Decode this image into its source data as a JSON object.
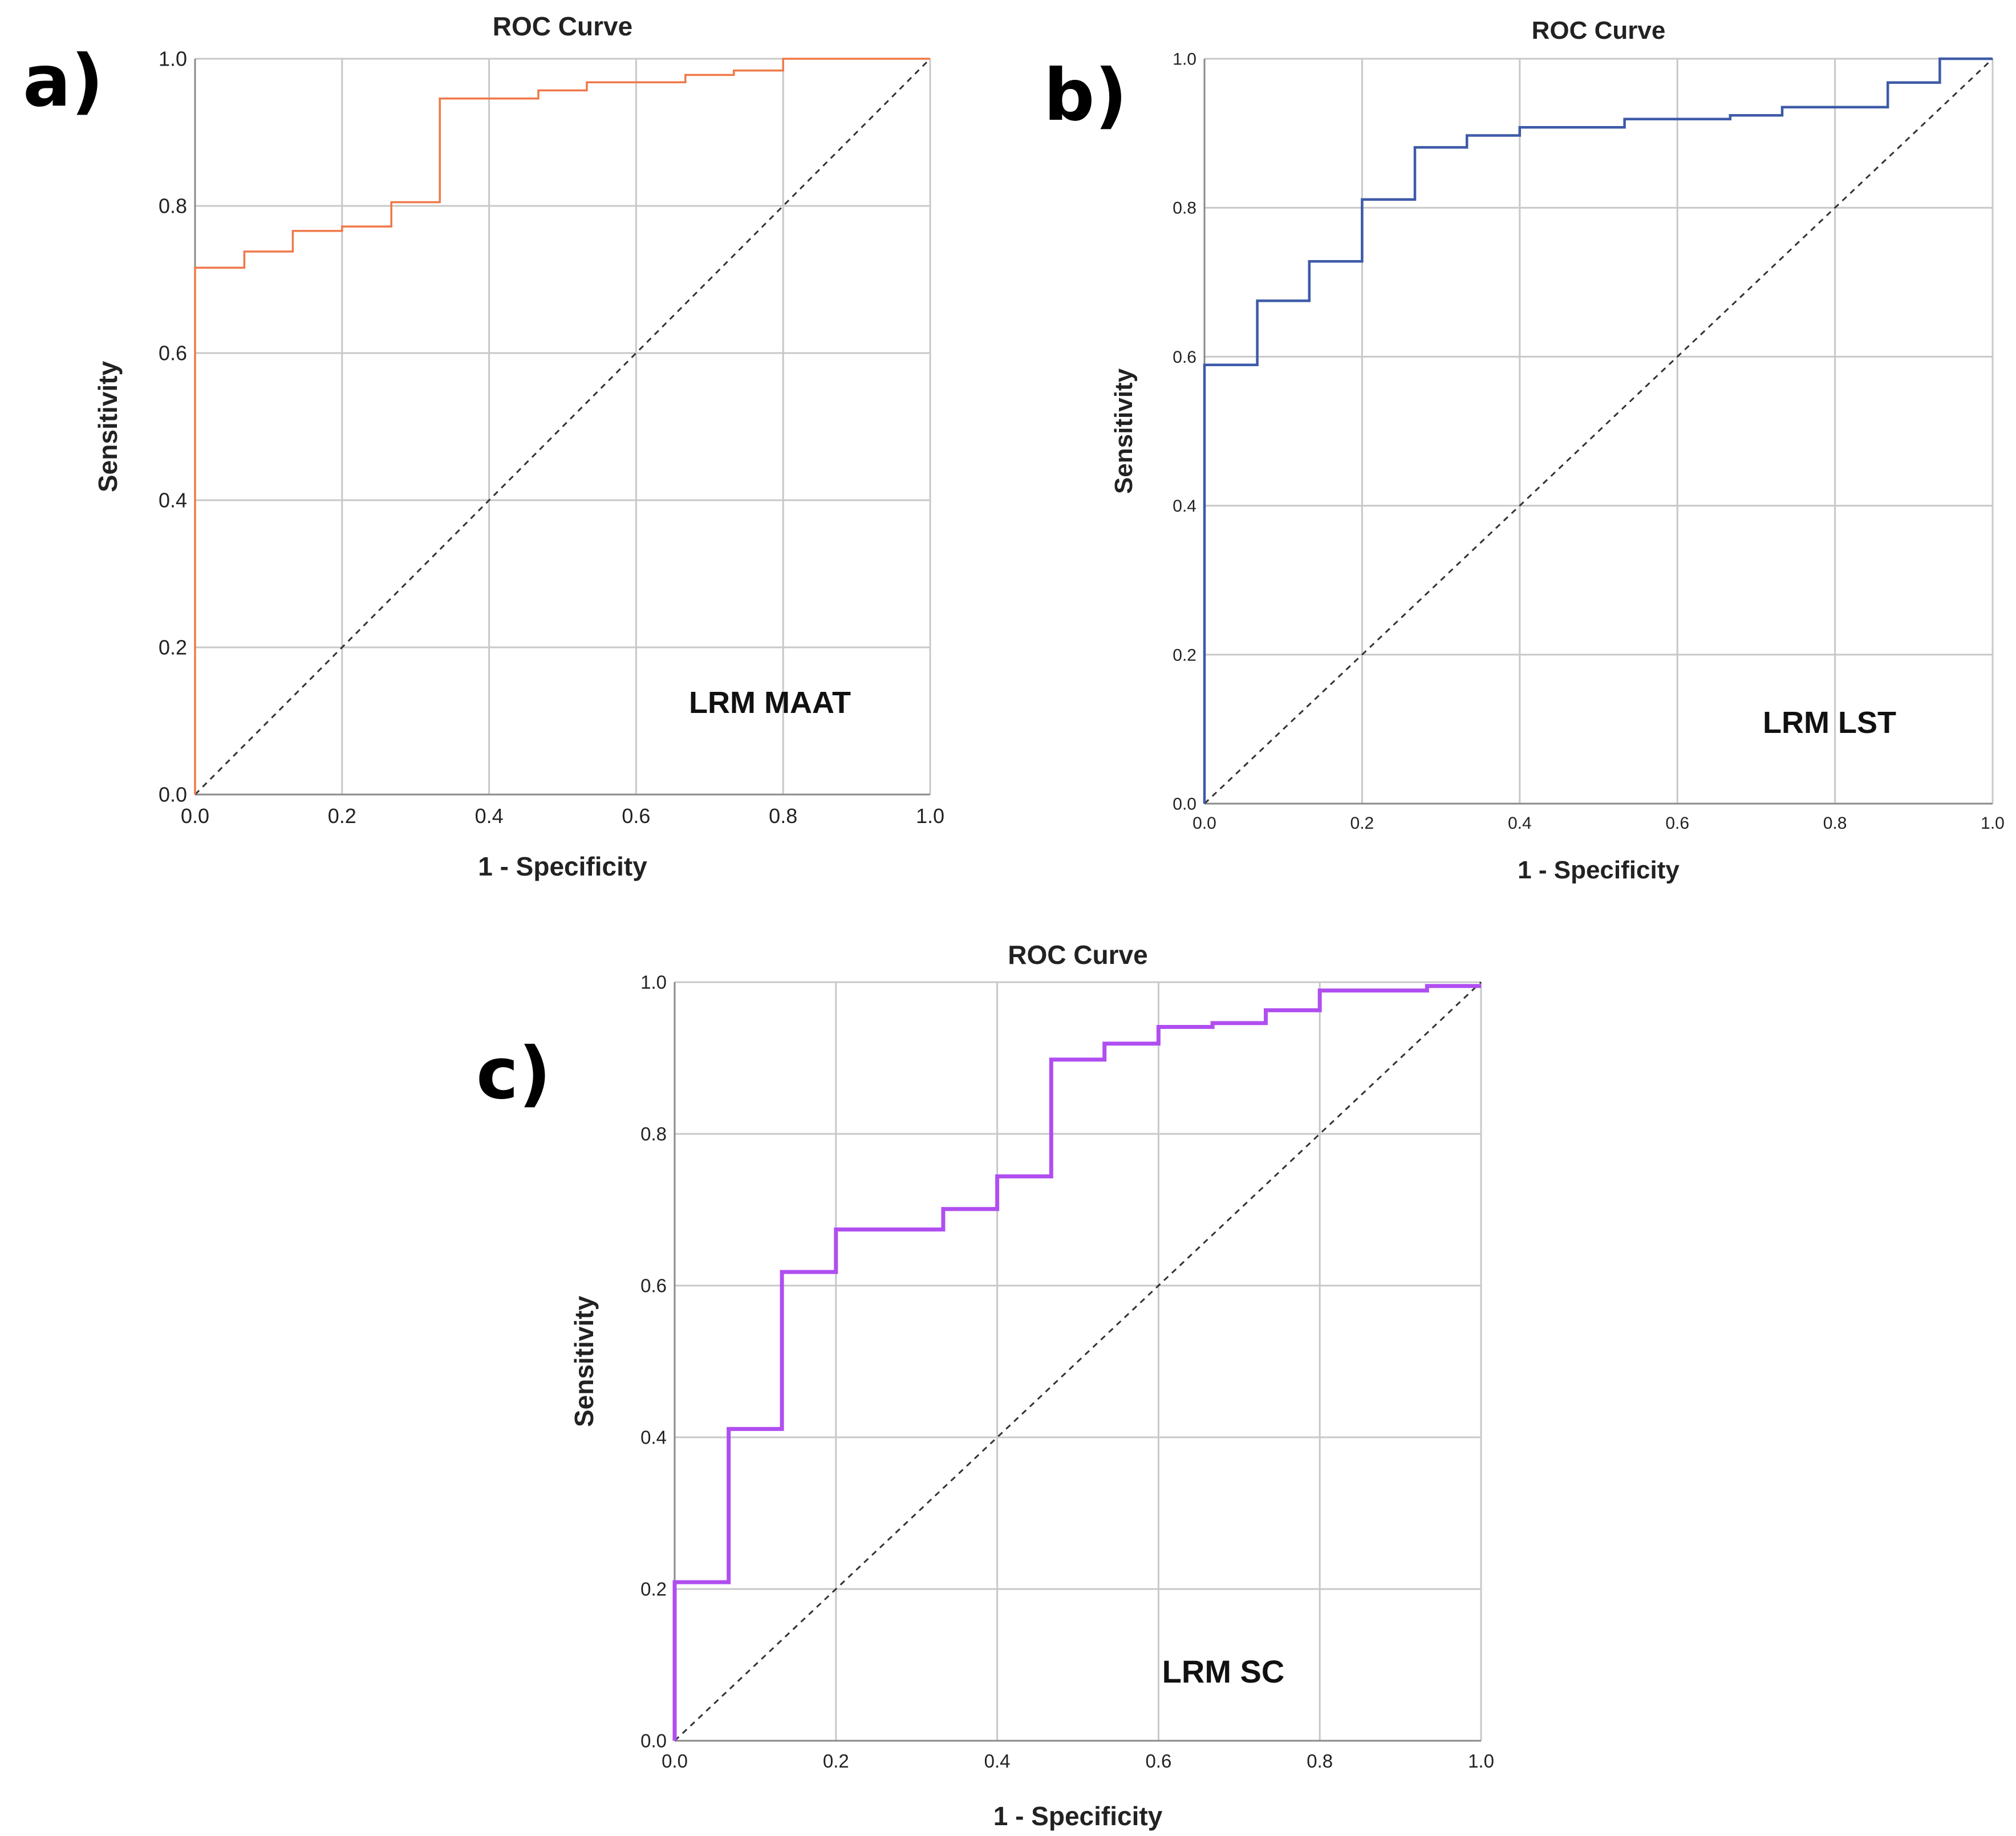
{
  "figure": {
    "panels": [
      "a)",
      "b)",
      "c)"
    ]
  },
  "chart_data": [
    {
      "panel": "a)",
      "type": "line",
      "title": "ROC Curve",
      "xlabel": "1 - Specificity",
      "ylabel": "Sensitivity",
      "annotation": "LRM MAAT",
      "xlim": [
        0,
        1
      ],
      "ylim": [
        0,
        1
      ],
      "grid": true,
      "xticks": [
        "0.0",
        "0.2",
        "0.4",
        "0.6",
        "0.8",
        "1.0"
      ],
      "yticks": [
        "0.0",
        "0.2",
        "0.4",
        "0.6",
        "0.8",
        "1.0"
      ],
      "color": "#f07848",
      "series": [
        {
          "name": "LRM MAAT",
          "x": [
            0,
            0,
            0.067,
            0.067,
            0.133,
            0.133,
            0.2,
            0.2,
            0.267,
            0.267,
            0.333,
            0.333,
            0.467,
            0.467,
            0.533,
            0.533,
            0.667,
            0.667,
            0.733,
            0.733,
            0.8,
            0.8,
            1.0
          ],
          "y": [
            0,
            0.716,
            0.716,
            0.738,
            0.738,
            0.766,
            0.766,
            0.772,
            0.772,
            0.805,
            0.805,
            0.946,
            0.946,
            0.957,
            0.957,
            0.968,
            0.968,
            0.978,
            0.978,
            0.984,
            0.984,
            1.0,
            1.0
          ]
        },
        {
          "name": "reference",
          "x": [
            0,
            1
          ],
          "y": [
            0,
            1
          ]
        }
      ]
    },
    {
      "panel": "b)",
      "type": "line",
      "title": "ROC Curve",
      "xlabel": "1 - Specificity",
      "ylabel": "Sensitivity",
      "annotation": "LRM LST",
      "xlim": [
        0,
        1
      ],
      "ylim": [
        0,
        1
      ],
      "grid": true,
      "xticks": [
        "0.0",
        "0.2",
        "0.4",
        "0.6",
        "0.8",
        "1.0"
      ],
      "yticks": [
        "0.0",
        "0.2",
        "0.4",
        "0.6",
        "0.8",
        "1.0"
      ],
      "color": "#3e5aa8",
      "series": [
        {
          "name": "LRM LST",
          "x": [
            0,
            0,
            0.067,
            0.067,
            0.133,
            0.133,
            0.2,
            0.2,
            0.267,
            0.267,
            0.333,
            0.333,
            0.4,
            0.4,
            0.533,
            0.533,
            0.667,
            0.667,
            0.733,
            0.733,
            0.867,
            0.867,
            0.933,
            0.933,
            1.0
          ],
          "y": [
            0,
            0.589,
            0.589,
            0.675,
            0.675,
            0.728,
            0.728,
            0.811,
            0.811,
            0.881,
            0.881,
            0.897,
            0.897,
            0.908,
            0.908,
            0.919,
            0.919,
            0.924,
            0.924,
            0.935,
            0.935,
            0.968,
            0.968,
            1.0,
            1.0
          ]
        },
        {
          "name": "reference",
          "x": [
            0,
            1
          ],
          "y": [
            0,
            1
          ]
        }
      ]
    },
    {
      "panel": "c)",
      "type": "line",
      "title": "ROC Curve",
      "xlabel": "1 - Specificity",
      "ylabel": "Sensitivity",
      "annotation": "LRM SC",
      "xlim": [
        0,
        1
      ],
      "ylim": [
        0,
        1
      ],
      "grid": true,
      "xticks": [
        "0.0",
        "0.2",
        "0.4",
        "0.6",
        "0.8",
        "1.0"
      ],
      "yticks": [
        "0.0",
        "0.2",
        "0.4",
        "0.6",
        "0.8",
        "1.0"
      ],
      "color": "#b04ef0",
      "series": [
        {
          "name": "LRM SC",
          "x": [
            0,
            0,
            0.067,
            0.067,
            0.133,
            0.133,
            0.2,
            0.2,
            0.333,
            0.333,
            0.4,
            0.4,
            0.467,
            0.467,
            0.533,
            0.533,
            0.6,
            0.6,
            0.667,
            0.667,
            0.733,
            0.733,
            0.8,
            0.8,
            0.933,
            0.933,
            1.0
          ],
          "y": [
            0,
            0.209,
            0.209,
            0.411,
            0.411,
            0.618,
            0.618,
            0.674,
            0.674,
            0.701,
            0.701,
            0.744,
            0.744,
            0.898,
            0.898,
            0.919,
            0.919,
            0.941,
            0.941,
            0.946,
            0.946,
            0.963,
            0.963,
            0.989,
            0.989,
            0.995,
            0.995
          ]
        },
        {
          "name": "reference",
          "x": [
            0,
            1
          ],
          "y": [
            0,
            1
          ]
        }
      ]
    }
  ]
}
